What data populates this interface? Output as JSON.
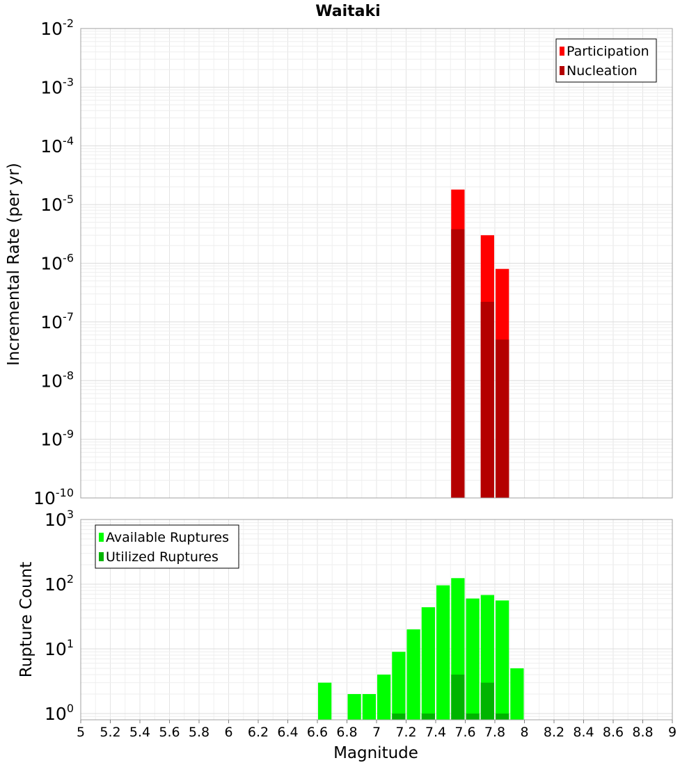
{
  "chart_data": [
    {
      "type": "bar",
      "title": "Waitaki",
      "xlabel": "",
      "ylabel": "Incremental Rate (per yr)",
      "yscale": "log",
      "ylim": [
        1e-10,
        0.01
      ],
      "xlim": [
        5,
        9
      ],
      "grid": true,
      "legend_position": "top-right",
      "series": [
        {
          "name": "Participation",
          "color": "#ff0000",
          "x": [
            7.55,
            7.75,
            7.85
          ],
          "values": [
            1.8e-05,
            3e-06,
            8e-07
          ]
        },
        {
          "name": "Nucleation",
          "color": "#b40000",
          "x": [
            7.55,
            7.75,
            7.85
          ],
          "values": [
            3.8e-06,
            2.2e-07,
            5e-08
          ]
        }
      ]
    },
    {
      "type": "bar",
      "title": "",
      "xlabel": "Magnitude",
      "ylabel": "Rupture Count",
      "yscale": "log",
      "ylim": [
        0.8,
        1000
      ],
      "xlim": [
        5,
        9
      ],
      "grid": true,
      "legend_position": "top-left",
      "series": [
        {
          "name": "Available Ruptures",
          "color": "#00ff00",
          "x": [
            6.65,
            6.85,
            6.95,
            7.05,
            7.15,
            7.25,
            7.35,
            7.45,
            7.55,
            7.65,
            7.75,
            7.85,
            7.95
          ],
          "values": [
            3,
            2,
            2,
            4,
            9,
            20,
            44,
            96,
            124,
            60,
            68,
            56,
            5
          ]
        },
        {
          "name": "Utilized Ruptures",
          "color": "#00b400",
          "x": [
            7.15,
            7.35,
            7.55,
            7.65,
            7.75,
            7.85
          ],
          "values": [
            1,
            1,
            4,
            1,
            3,
            1
          ]
        }
      ]
    }
  ],
  "x_ticks": [
    "5",
    "5.2",
    "5.4",
    "5.6",
    "5.8",
    "6",
    "6.2",
    "6.4",
    "6.6",
    "6.8",
    "7",
    "7.2",
    "7.4",
    "7.6",
    "7.8",
    "8",
    "8.2",
    "8.4",
    "8.6",
    "8.8",
    "9"
  ],
  "top_y_ticks": [
    {
      "base": "10",
      "exp": "-2"
    },
    {
      "base": "10",
      "exp": "-3"
    },
    {
      "base": "10",
      "exp": "-4"
    },
    {
      "base": "10",
      "exp": "-5"
    },
    {
      "base": "10",
      "exp": "-6"
    },
    {
      "base": "10",
      "exp": "-7"
    },
    {
      "base": "10",
      "exp": "-8"
    },
    {
      "base": "10",
      "exp": "-9"
    },
    {
      "base": "10",
      "exp": "-10"
    }
  ],
  "bottom_y_ticks": [
    {
      "base": "10",
      "exp": "3"
    },
    {
      "base": "10",
      "exp": "2"
    },
    {
      "base": "10",
      "exp": "1"
    },
    {
      "base": "10",
      "exp": "0"
    }
  ]
}
